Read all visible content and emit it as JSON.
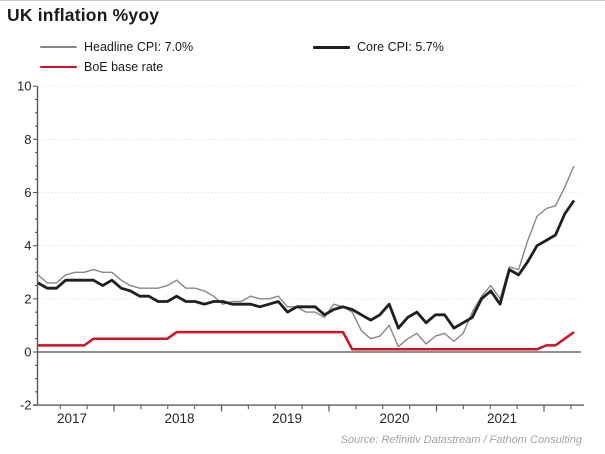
{
  "title": "UK inflation %yoy",
  "source": "Source: Refinitiv Datastream / Fathom Consulting",
  "colors": {
    "headline": "#878787",
    "core": "#1f1f1f",
    "base_rate": "#d01126",
    "grid": "#d9d9d9",
    "zero_line": "#808080",
    "axis": "#595959",
    "tick_text": "#262626",
    "title_text": "#1a1a1a",
    "source_text": "#a3a3a3"
  },
  "legend": {
    "headline_label": "Headline CPI: 7.0%",
    "core_label": "Core CPI: 5.7%",
    "base_rate_label": "BoE base rate"
  },
  "chart_data": {
    "type": "line",
    "title": "UK inflation %yoy",
    "xlabel": "",
    "ylabel": "",
    "x_freq": "monthly",
    "x_start": "2017-05",
    "x_end": "2022-03",
    "xticklabels": [
      "2017",
      "2018",
      "2019",
      "2020",
      "2021"
    ],
    "ylim": [
      -2,
      10
    ],
    "yticks": [
      -2,
      0,
      2,
      4,
      6,
      8,
      10
    ],
    "yticklabels": [
      "-2",
      "0",
      "2",
      "4",
      "6",
      "8",
      "10"
    ],
    "grid": "horizontal dotted at 2,4,6,8,10; solid grey line at 0",
    "legend_position": "top",
    "series": [
      {
        "name": "Headline CPI: 7.0%",
        "color": "#878787",
        "width": 1.4,
        "values": [
          2.9,
          2.6,
          2.6,
          2.9,
          3.0,
          3.0,
          3.1,
          3.0,
          3.0,
          2.7,
          2.5,
          2.4,
          2.4,
          2.4,
          2.5,
          2.7,
          2.4,
          2.4,
          2.3,
          2.1,
          1.8,
          1.9,
          1.9,
          2.1,
          2.0,
          2.0,
          2.1,
          1.7,
          1.7,
          1.5,
          1.5,
          1.3,
          1.8,
          1.7,
          1.5,
          0.8,
          0.5,
          0.6,
          1.0,
          0.2,
          0.5,
          0.7,
          0.3,
          0.6,
          0.7,
          0.4,
          0.7,
          1.5,
          2.1,
          2.5,
          2.0,
          3.2,
          3.1,
          4.2,
          5.1,
          5.4,
          5.5,
          6.2,
          7.0
        ]
      },
      {
        "name": "Core CPI: 5.7%",
        "color": "#1f1f1f",
        "width": 2.8,
        "values": [
          2.6,
          2.4,
          2.4,
          2.7,
          2.7,
          2.7,
          2.7,
          2.5,
          2.7,
          2.4,
          2.3,
          2.1,
          2.1,
          1.9,
          1.9,
          2.1,
          1.9,
          1.9,
          1.8,
          1.9,
          1.9,
          1.8,
          1.8,
          1.8,
          1.7,
          1.8,
          1.9,
          1.5,
          1.7,
          1.7,
          1.7,
          1.4,
          1.6,
          1.7,
          1.6,
          1.4,
          1.2,
          1.4,
          1.8,
          0.9,
          1.3,
          1.5,
          1.1,
          1.4,
          1.4,
          0.9,
          1.1,
          1.3,
          2.0,
          2.3,
          1.8,
          3.1,
          2.9,
          3.4,
          4.0,
          4.2,
          4.4,
          5.2,
          5.7
        ]
      },
      {
        "name": "BoE base rate",
        "color": "#d01126",
        "width": 2.5,
        "values": [
          0.25,
          0.25,
          0.25,
          0.25,
          0.25,
          0.25,
          0.5,
          0.5,
          0.5,
          0.5,
          0.5,
          0.5,
          0.5,
          0.5,
          0.5,
          0.75,
          0.75,
          0.75,
          0.75,
          0.75,
          0.75,
          0.75,
          0.75,
          0.75,
          0.75,
          0.75,
          0.75,
          0.75,
          0.75,
          0.75,
          0.75,
          0.75,
          0.75,
          0.75,
          0.1,
          0.1,
          0.1,
          0.1,
          0.1,
          0.1,
          0.1,
          0.1,
          0.1,
          0.1,
          0.1,
          0.1,
          0.1,
          0.1,
          0.1,
          0.1,
          0.1,
          0.1,
          0.1,
          0.1,
          0.1,
          0.25,
          0.25,
          0.5,
          0.75
        ]
      }
    ]
  }
}
